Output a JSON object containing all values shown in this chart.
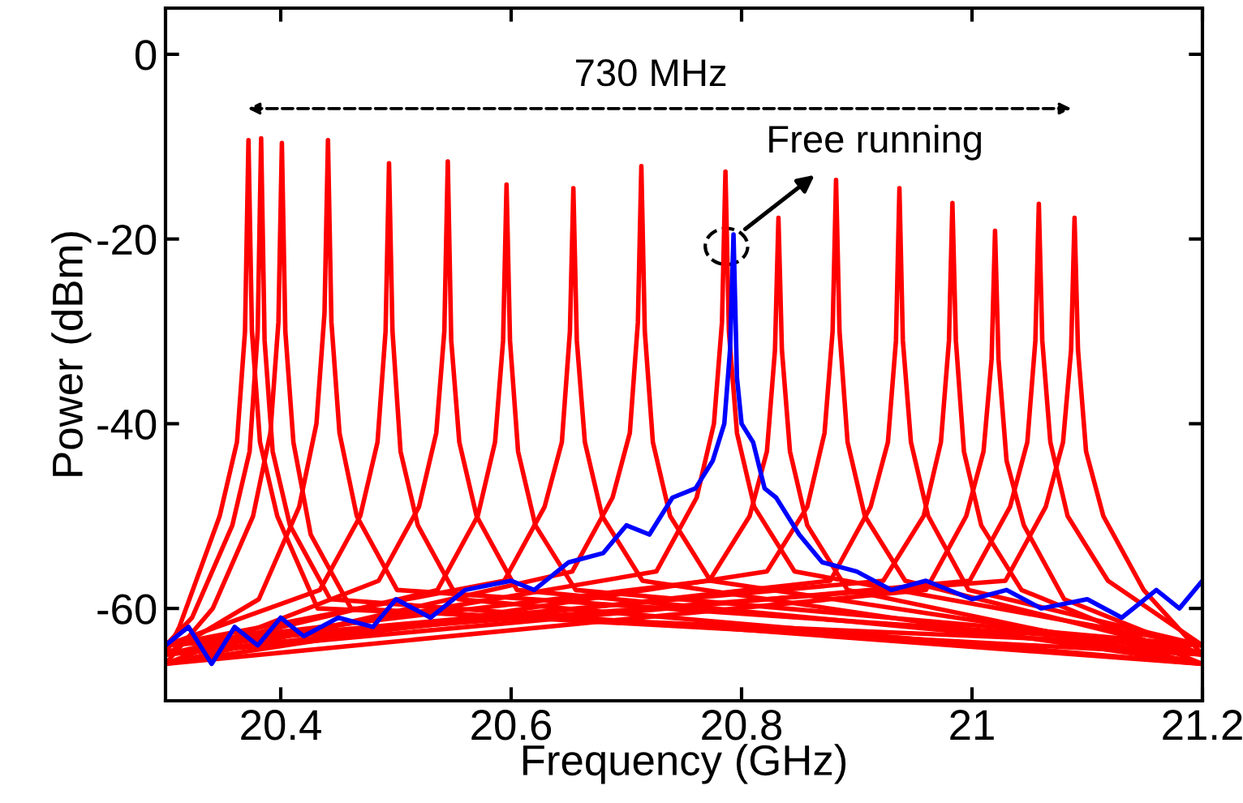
{
  "chart_data": {
    "type": "line",
    "xlabel": "Frequency (GHz)",
    "ylabel": "Power (dBm)",
    "xlim": [
      20.3,
      21.2
    ],
    "xticks": [
      20.4,
      20.6,
      20.8,
      {
        "value": 21,
        "label": "21"
      },
      21.2
    ],
    "ylim": [
      -70,
      5
    ],
    "yticks": [
      0,
      -20,
      -40,
      -60
    ],
    "grid": false,
    "legend": false,
    "marker": "none",
    "line_style": "solid",
    "annotations": [
      "730 MHz",
      "Free running"
    ],
    "series": [
      {
        "color": "#ff0000",
        "x": [
          20.3,
          20.312,
          20.347,
          20.362,
          20.369,
          20.372,
          20.375,
          20.382,
          20.397,
          20.432,
          21.2
        ],
        "values": [
          -65,
          -62,
          -50,
          -42,
          -30,
          -9.3,
          -30,
          -42,
          -50,
          -60,
          -64
        ]
      },
      {
        "color": "#ff0000",
        "x": [
          20.3,
          20.323,
          20.358,
          20.373,
          20.38,
          20.383,
          20.386,
          20.393,
          20.408,
          20.443,
          21.2
        ],
        "values": [
          -64,
          -61,
          -51,
          -43,
          -30,
          -9.1,
          -31,
          -43,
          -51,
          -59,
          -66
        ]
      },
      {
        "color": "#ff0000",
        "x": [
          20.3,
          20.341,
          20.376,
          20.391,
          20.398,
          20.401,
          20.404,
          20.411,
          20.426,
          20.461,
          21.2
        ],
        "values": [
          -66,
          -60,
          -50,
          -41,
          -29,
          -9.6,
          -30,
          -42,
          -52,
          -60,
          -65
        ]
      },
      {
        "color": "#ff0000",
        "x": [
          20.3,
          20.381,
          20.416,
          20.431,
          20.438,
          20.441,
          20.444,
          20.451,
          20.466,
          20.501,
          21.2
        ],
        "values": [
          -65,
          -59,
          -49,
          -40,
          -28,
          -9.3,
          -29,
          -41,
          -50,
          -58,
          -64
        ]
      },
      {
        "color": "#ff0000",
        "x": [
          20.3,
          20.434,
          20.469,
          20.484,
          20.491,
          20.494,
          20.497,
          20.504,
          20.519,
          20.554,
          21.2
        ],
        "values": [
          -64,
          -58,
          -50,
          -42,
          -30,
          -11.8,
          -30,
          -43,
          -51,
          -59,
          -66
        ]
      },
      {
        "color": "#ff0000",
        "x": [
          20.3,
          20.485,
          20.52,
          20.535,
          20.542,
          20.545,
          20.548,
          20.555,
          20.57,
          20.605,
          21.2
        ],
        "values": [
          -66,
          -57,
          -49,
          -41,
          -30,
          -11.6,
          -31,
          -42,
          -50,
          -58,
          -65
        ]
      },
      {
        "color": "#ff0000",
        "x": [
          20.3,
          20.536,
          20.571,
          20.586,
          20.593,
          20.596,
          20.599,
          20.606,
          20.621,
          20.656,
          21.2
        ],
        "values": [
          -65,
          -58,
          -50,
          -42,
          -31,
          -14.1,
          -31,
          -43,
          -51,
          -58,
          -64
        ]
      },
      {
        "color": "#ff0000",
        "x": [
          20.3,
          20.594,
          20.629,
          20.644,
          20.651,
          20.654,
          20.657,
          20.664,
          20.679,
          20.714,
          21.2
        ],
        "values": [
          -64,
          -57,
          -49,
          -42,
          -30,
          -14.5,
          -31,
          -42,
          -50,
          -57,
          -66
        ]
      },
      {
        "color": "#ff0000",
        "x": [
          20.3,
          20.653,
          20.688,
          20.703,
          20.71,
          20.713,
          20.716,
          20.723,
          20.738,
          20.773,
          21.2
        ],
        "values": [
          -66,
          -56,
          -48,
          -41,
          -29,
          -12.1,
          -30,
          -42,
          -50,
          -57,
          -65
        ]
      },
      {
        "color": "#ff0000",
        "x": [
          20.3,
          20.726,
          20.761,
          20.776,
          20.783,
          20.786,
          20.789,
          20.796,
          20.811,
          20.846,
          21.2
        ],
        "values": [
          -65,
          -56,
          -48,
          -40,
          -29,
          -12.7,
          -30,
          -41,
          -49,
          -56,
          -64
        ]
      },
      {
        "color": "#ff0000",
        "x": [
          20.3,
          20.772,
          20.807,
          20.822,
          20.829,
          20.832,
          20.835,
          20.842,
          20.857,
          20.892,
          21.2
        ],
        "values": [
          -64,
          -57,
          -50,
          -43,
          -32,
          -17.7,
          -32,
          -43,
          -51,
          -58,
          -66
        ]
      },
      {
        "color": "#ff0000",
        "x": [
          20.3,
          20.822,
          20.857,
          20.872,
          20.879,
          20.882,
          20.885,
          20.892,
          20.907,
          20.942,
          21.2
        ],
        "values": [
          -66,
          -56,
          -49,
          -41,
          -30,
          -13.6,
          -30,
          -42,
          -50,
          -57,
          -65
        ]
      },
      {
        "color": "#ff0000",
        "x": [
          20.3,
          20.877,
          20.912,
          20.927,
          20.934,
          20.937,
          20.94,
          20.947,
          20.962,
          20.997,
          21.2
        ],
        "values": [
          -65,
          -57,
          -49,
          -42,
          -31,
          -14.5,
          -31,
          -42,
          -50,
          -58,
          -64
        ]
      },
      {
        "color": "#ff0000",
        "x": [
          20.3,
          20.923,
          20.958,
          20.973,
          20.98,
          20.983,
          20.986,
          20.993,
          21.008,
          21.043,
          21.2
        ],
        "values": [
          -64,
          -57,
          -50,
          -42,
          -31,
          -16.1,
          -31,
          -43,
          -51,
          -58,
          -66
        ]
      },
      {
        "color": "#ff0000",
        "x": [
          20.3,
          20.96,
          20.995,
          21.01,
          21.017,
          21.02,
          21.023,
          21.03,
          21.045,
          21.08,
          21.2
        ],
        "values": [
          -66,
          -58,
          -50,
          -43,
          -33,
          -19.1,
          -33,
          -44,
          -51,
          -59,
          -65
        ]
      },
      {
        "color": "#ff0000",
        "x": [
          20.3,
          20.998,
          21.033,
          21.048,
          21.055,
          21.058,
          21.061,
          21.068,
          21.083,
          21.118,
          21.2
        ],
        "values": [
          -65,
          -57,
          -49,
          -42,
          -31,
          -16.2,
          -31,
          -42,
          -50,
          -57,
          -64
        ]
      },
      {
        "color": "#ff0000",
        "x": [
          20.3,
          21.029,
          21.064,
          21.079,
          21.086,
          21.089,
          21.092,
          21.099,
          21.114,
          21.149,
          21.2
        ],
        "values": [
          -64,
          -57,
          -49,
          -42,
          -32,
          -17.7,
          -32,
          -43,
          -50,
          -58,
          -65
        ]
      },
      {
        "color": "#0000ff",
        "x": [
          20.3,
          20.32,
          20.34,
          20.36,
          20.38,
          20.4,
          20.42,
          20.45,
          20.48,
          20.5,
          20.53,
          20.56,
          20.6,
          20.62,
          20.65,
          20.68,
          20.7,
          20.72,
          20.74,
          20.76,
          20.775,
          20.785,
          20.79,
          20.793,
          20.796,
          20.8,
          20.81,
          20.82,
          20.83,
          20.85,
          20.87,
          20.9,
          20.93,
          20.96,
          21.0,
          21.03,
          21.06,
          21.1,
          21.13,
          21.16,
          21.18,
          21.2
        ],
        "values": [
          -64,
          -62,
          -66,
          -62,
          -64,
          -61,
          -63,
          -61,
          -62,
          -59,
          -61,
          -58,
          -57,
          -58,
          -55,
          -54,
          -51,
          -52,
          -48,
          -47,
          -44,
          -40,
          -32,
          -19.5,
          -35,
          -40,
          -42,
          -47,
          -48,
          -52,
          -55,
          -56,
          -58,
          -57,
          -59,
          -58,
          -60,
          -59,
          -61,
          -58,
          -60,
          -57
        ]
      }
    ]
  }
}
